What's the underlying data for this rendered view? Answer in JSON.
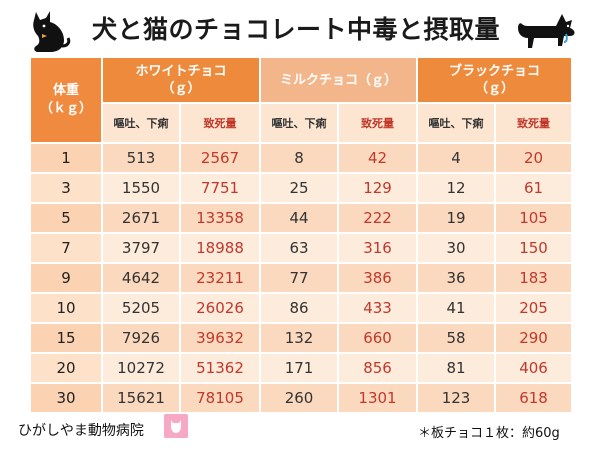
{
  "title": "犬と猫のチョコレート中毒と摂取量",
  "header": {
    "weight_label": "体重",
    "weight_unit": "（ｋｇ）",
    "groups": [
      {
        "name": "ホワイトチョコ",
        "unit": "（ｇ）"
      },
      {
        "name": "ミルクチョコ（ｇ）",
        "unit": ""
      },
      {
        "name": "ブラックチョコ",
        "unit": "（ｇ）"
      }
    ],
    "sub_vomit": "嘔吐、下痢",
    "sub_lethal": "致死量"
  },
  "rows": [
    {
      "weight": "1",
      "white_vomit": "513",
      "white_lethal": "2567",
      "milk_vomit": "8",
      "milk_lethal": "42",
      "black_vomit": "4",
      "black_lethal": "20"
    },
    {
      "weight": "3",
      "white_vomit": "1550",
      "white_lethal": "7751",
      "milk_vomit": "25",
      "milk_lethal": "129",
      "black_vomit": "12",
      "black_lethal": "61"
    },
    {
      "weight": "5",
      "white_vomit": "2671",
      "white_lethal": "13358",
      "milk_vomit": "44",
      "milk_lethal": "222",
      "black_vomit": "19",
      "black_lethal": "105"
    },
    {
      "weight": "7",
      "white_vomit": "3797",
      "white_lethal": "18988",
      "milk_vomit": "63",
      "milk_lethal": "316",
      "black_vomit": "30",
      "black_lethal": "150"
    },
    {
      "weight": "9",
      "white_vomit": "4642",
      "white_lethal": "23211",
      "milk_vomit": "77",
      "milk_lethal": "386",
      "black_vomit": "36",
      "black_lethal": "183"
    },
    {
      "weight": "10",
      "white_vomit": "5205",
      "white_lethal": "26026",
      "milk_vomit": "86",
      "milk_lethal": "433",
      "black_vomit": "41",
      "black_lethal": "205"
    },
    {
      "weight": "15",
      "white_vomit": "7926",
      "white_lethal": "39632",
      "milk_vomit": "132",
      "milk_lethal": "660",
      "black_vomit": "58",
      "black_lethal": "290"
    },
    {
      "weight": "20",
      "white_vomit": "10272",
      "white_lethal": "51362",
      "milk_vomit": "171",
      "milk_lethal": "856",
      "black_vomit": "81",
      "black_lethal": "406"
    },
    {
      "weight": "30",
      "white_vomit": "15621",
      "white_lethal": "78105",
      "milk_vomit": "260",
      "milk_lethal": "1301",
      "black_vomit": "123",
      "black_lethal": "618"
    }
  ],
  "footer": {
    "clinic": "ひがしやま動物病院",
    "note": "＊板チョコ１枚：約60g"
  },
  "icons": {
    "cat": "cat-silhouette-icon",
    "dog": "dog-silhouette-icon",
    "logo": "clinic-logo-icon"
  },
  "colors": {
    "header_orange": "#ee8a3c",
    "header_light": "#f3b58a",
    "row_bg": "#fbd9bf",
    "lethal_text": "#c0392b"
  }
}
